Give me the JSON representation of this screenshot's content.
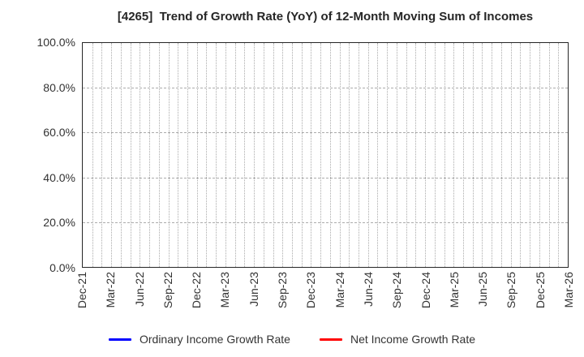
{
  "chart_data": {
    "type": "line",
    "title": "[4265]  Trend of Growth Rate (YoY) of 12-Month Moving Sum of Incomes",
    "x_tick_labels": [
      "Dec-21",
      "Mar-22",
      "Jun-22",
      "Sep-22",
      "Dec-22",
      "Mar-23",
      "Jun-23",
      "Sep-23",
      "Dec-23",
      "Mar-24",
      "Jun-24",
      "Sep-24",
      "Dec-24",
      "Mar-25",
      "Jun-25",
      "Sep-25",
      "Dec-25",
      "Mar-26"
    ],
    "x_months_per_label": 3,
    "y_tick_labels": [
      "100.0%",
      "80.0%",
      "60.0%",
      "40.0%",
      "20.0%",
      "0.0%"
    ],
    "y_tick_values": [
      100,
      80,
      60,
      40,
      20,
      0
    ],
    "ylim": [
      0,
      100
    ],
    "grid": {
      "vertical": "monthly-dotted",
      "horizontal": "dashed-every-20-percent"
    },
    "legend_position": "bottom-center",
    "series": [
      {
        "name": "Ordinary Income Growth Rate",
        "color": "#0000ff",
        "values": []
      },
      {
        "name": "Net Income Growth Rate",
        "color": "#ff0000",
        "values": []
      }
    ]
  },
  "colors": {
    "background": "#ffffff",
    "title_text": "#262626",
    "tick_text": "#333333",
    "legend_text": "#333333",
    "axis_border": "#262626",
    "gridline": "#ababab"
  }
}
